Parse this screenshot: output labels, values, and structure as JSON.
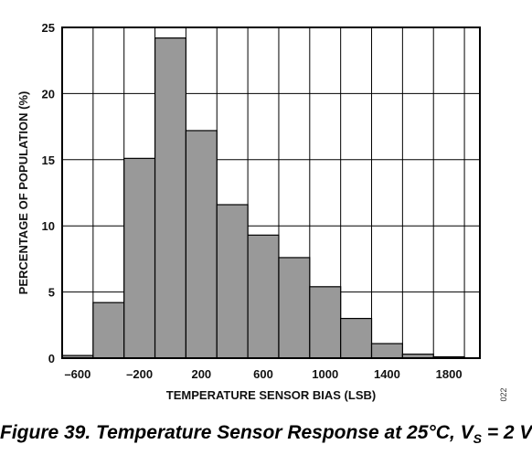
{
  "chart_data": {
    "type": "bar",
    "title": "",
    "xlabel": "TEMPERATURE SENSOR BIAS (LSB)",
    "ylabel": "PERCENTAGE OF POPULATION (%)",
    "xlim": [
      -700,
      2000
    ],
    "ylim": [
      0,
      25
    ],
    "x_ticks": [
      -600,
      -200,
      200,
      600,
      1000,
      1400,
      1800
    ],
    "x_tick_labels": [
      "–600",
      "–200",
      "200",
      "600",
      "1000",
      "1400",
      "1800"
    ],
    "y_ticks": [
      0,
      5,
      10,
      15,
      20,
      25
    ],
    "y_tick_labels": [
      "0",
      "5",
      "10",
      "15",
      "20",
      "25"
    ],
    "bin_width": 200,
    "bins": [
      -700,
      -500,
      -300,
      -100,
      100,
      300,
      500,
      700,
      900,
      1100,
      1300,
      1500,
      1700
    ],
    "values": [
      0.2,
      4.2,
      15.1,
      24.2,
      17.2,
      11.6,
      9.3,
      7.6,
      5.4,
      3.0,
      1.1,
      0.3,
      0.1
    ],
    "grid": true,
    "bar_color": "#999999",
    "edge_color": "#000000"
  },
  "figure_code": "022",
  "caption": {
    "prefix": "Figure 39. Temperature Sensor Response at 25°C, V",
    "subscript": "S",
    "suffix": " = 2 V"
  }
}
